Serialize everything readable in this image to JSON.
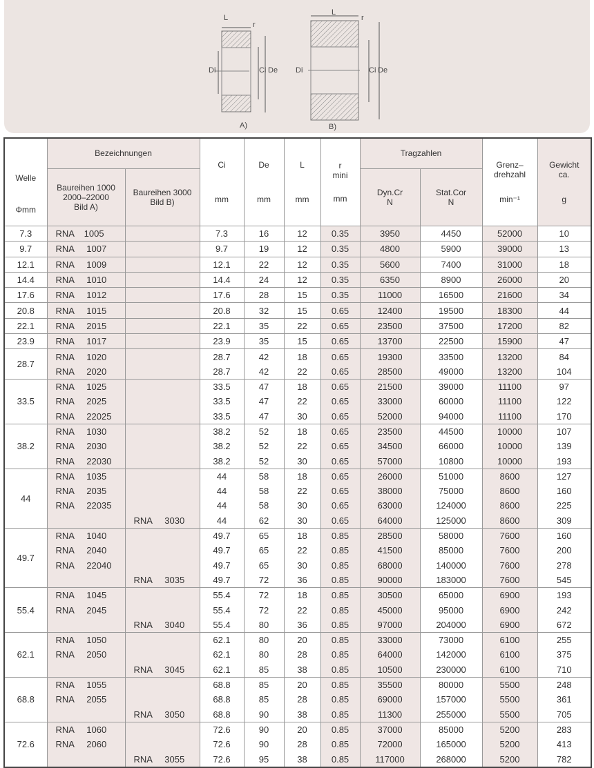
{
  "diagram": {
    "labels": {
      "L": "L",
      "r": "r",
      "Di": "Di",
      "Ci": "Ci",
      "De": "De"
    },
    "caption_a": "A)",
    "caption_b": "B)"
  },
  "header": {
    "welle": "Welle",
    "welle_unit": "Φmm",
    "bezeichnungen": "Bezeichnungen",
    "baureihen_a": "Baureihen 1000\n2000–22000\nBild A)",
    "baureihen_b": "Baureihen 3000\nBild B)",
    "ci": "Ci",
    "de": "De",
    "l": "L",
    "r": "r\nmini",
    "mm": "mm",
    "tragzahlen": "Tragzahlen",
    "dyn": "Dyn.Cr\nN",
    "stat": "Stat.Cor\nN",
    "grenz": "Grenz–\ndrehzahl",
    "grenz_unit": "min⁻¹",
    "gewicht": "Gewicht\nca.",
    "gewicht_unit": "g"
  },
  "groups": [
    {
      "welle": "7.3",
      "rows": [
        [
          "RNA    1005",
          "",
          "7.3",
          "16",
          "12",
          "0.35",
          "3950",
          "4450",
          "52000",
          "10"
        ]
      ]
    },
    {
      "welle": "9.7",
      "rows": [
        [
          "RNA     1007",
          "",
          "9.7",
          "19",
          "12",
          "0.35",
          "4800",
          "5900",
          "39000",
          "13"
        ]
      ]
    },
    {
      "welle": "12.1",
      "rows": [
        [
          "RNA     1009",
          "",
          "12.1",
          "22",
          "12",
          "0.35",
          "5600",
          "7400",
          "31000",
          "18"
        ]
      ]
    },
    {
      "welle": "14.4",
      "rows": [
        [
          "RNA     1010",
          "",
          "14.4",
          "24",
          "12",
          "0.35",
          "6350",
          "8900",
          "26000",
          "20"
        ]
      ]
    },
    {
      "welle": "17.6",
      "rows": [
        [
          "RNA     1012",
          "",
          "17.6",
          "28",
          "15",
          "0.35",
          "11000",
          "16500",
          "21600",
          "34"
        ]
      ]
    },
    {
      "welle": "20.8",
      "rows": [
        [
          "RNA     1015",
          "",
          "20.8",
          "32",
          "15",
          "0.65",
          "12400",
          "19500",
          "18300",
          "44"
        ]
      ]
    },
    {
      "welle": "22.1",
      "rows": [
        [
          "RNA     2015",
          "",
          "22.1",
          "35",
          "22",
          "0.65",
          "23500",
          "37500",
          "17200",
          "82"
        ]
      ]
    },
    {
      "welle": "23.9",
      "rows": [
        [
          "RNA     1017",
          "",
          "23.9",
          "35",
          "15",
          "0.65",
          "13700",
          "22500",
          "15900",
          "47"
        ]
      ]
    },
    {
      "welle": "28.7",
      "rows": [
        [
          "RNA     1020",
          "",
          "28.7",
          "42",
          "18",
          "0.65",
          "19300",
          "33500",
          "13200",
          "84"
        ],
        [
          "RNA     2020",
          "",
          "28.7",
          "42",
          "22",
          "0.65",
          "28500",
          "49000",
          "13200",
          "104"
        ]
      ]
    },
    {
      "welle": "33.5",
      "rows": [
        [
          "RNA     1025",
          "",
          "33.5",
          "47",
          "18",
          "0.65",
          "21500",
          "39000",
          "11100",
          "97"
        ],
        [
          "RNA     2025",
          "",
          "33.5",
          "47",
          "22",
          "0.65",
          "33000",
          "60000",
          "11100",
          "122"
        ],
        [
          "RNA     22025",
          "",
          "33.5",
          "47",
          "30",
          "0.65",
          "52000",
          "94000",
          "11100",
          "170"
        ]
      ]
    },
    {
      "welle": "38.2",
      "rows": [
        [
          "RNA     1030",
          "",
          "38.2",
          "52",
          "18",
          "0.65",
          "23500",
          "44500",
          "10000",
          "107"
        ],
        [
          "RNA     2030",
          "",
          "38.2",
          "52",
          "22",
          "0.65",
          "34500",
          "66000",
          "10000",
          "139"
        ],
        [
          "RNA     22030",
          "",
          "38.2",
          "52",
          "30",
          "0.65",
          "57000",
          "10800",
          "10000",
          "193"
        ]
      ]
    },
    {
      "welle": "44",
      "rows": [
        [
          "RNA     1035",
          "",
          "44",
          "58",
          "18",
          "0.65",
          "26000",
          "51000",
          "8600",
          "127"
        ],
        [
          "RNA     2035",
          "",
          "44",
          "58",
          "22",
          "0.65",
          "38000",
          "75000",
          "8600",
          "160"
        ],
        [
          "RNA     22035",
          "",
          "44",
          "58",
          "30",
          "0.65",
          "63000",
          "124000",
          "8600",
          "225"
        ],
        [
          "",
          "RNA     3030",
          "44",
          "62",
          "30",
          "0.65",
          "64000",
          "125000",
          "8600",
          "309"
        ]
      ]
    },
    {
      "welle": "49.7",
      "rows": [
        [
          "RNA     1040",
          "",
          "49.7",
          "65",
          "18",
          "0.85",
          "28500",
          "58000",
          "7600",
          "160"
        ],
        [
          "RNA     2040",
          "",
          "49.7",
          "65",
          "22",
          "0.85",
          "41500",
          "85000",
          "7600",
          "200"
        ],
        [
          "RNA     22040",
          "",
          "49.7",
          "65",
          "30",
          "0.85",
          "68000",
          "140000",
          "7600",
          "278"
        ],
        [
          "",
          "RNA     3035",
          "49.7",
          "72",
          "36",
          "0.85",
          "90000",
          "183000",
          "7600",
          "545"
        ]
      ]
    },
    {
      "welle": "55.4",
      "rows": [
        [
          "RNA     1045",
          "",
          "55.4",
          "72",
          "18",
          "0.85",
          "30500",
          "65000",
          "6900",
          "193"
        ],
        [
          "RNA     2045",
          "",
          "55.4",
          "72",
          "22",
          "0.85",
          "45000",
          "95000",
          "6900",
          "242"
        ],
        [
          "",
          "RNA     3040",
          "55.4",
          "80",
          "36",
          "0.85",
          "97000",
          "204000",
          "6900",
          "672"
        ]
      ]
    },
    {
      "welle": "62.1",
      "rows": [
        [
          "RNA     1050",
          "",
          "62.1",
          "80",
          "20",
          "0.85",
          "33000",
          "73000",
          "6100",
          "255"
        ],
        [
          "RNA     2050",
          "",
          "62.1",
          "80",
          "28",
          "0.85",
          "64000",
          "142000",
          "6100",
          "375"
        ],
        [
          "",
          "RNA     3045",
          "62.1",
          "85",
          "38",
          "0.85",
          "10500",
          "230000",
          "6100",
          "710"
        ]
      ]
    },
    {
      "welle": "68.8",
      "rows": [
        [
          "RNA     1055",
          "",
          "68.8",
          "85",
          "20",
          "0.85",
          "35500",
          "80000",
          "5500",
          "248"
        ],
        [
          "RNA     2055",
          "",
          "68.8",
          "85",
          "28",
          "0.85",
          "69000",
          "157000",
          "5500",
          "361"
        ],
        [
          "",
          "RNA     3050",
          "68.8",
          "90",
          "38",
          "0.85",
          "11300",
          "255000",
          "5500",
          "705"
        ]
      ]
    },
    {
      "welle": "72.6",
      "rows": [
        [
          "RNA     1060",
          "",
          "72.6",
          "90",
          "20",
          "0.85",
          "37000",
          "85000",
          "5200",
          "283"
        ],
        [
          "RNA     2060",
          "",
          "72.6",
          "90",
          "28",
          "0.85",
          "72000",
          "165000",
          "5200",
          "413"
        ],
        [
          "",
          "RNA     3055",
          "72.6",
          "95",
          "38",
          "0.85",
          "117000",
          "268000",
          "5200",
          "782"
        ]
      ]
    }
  ]
}
